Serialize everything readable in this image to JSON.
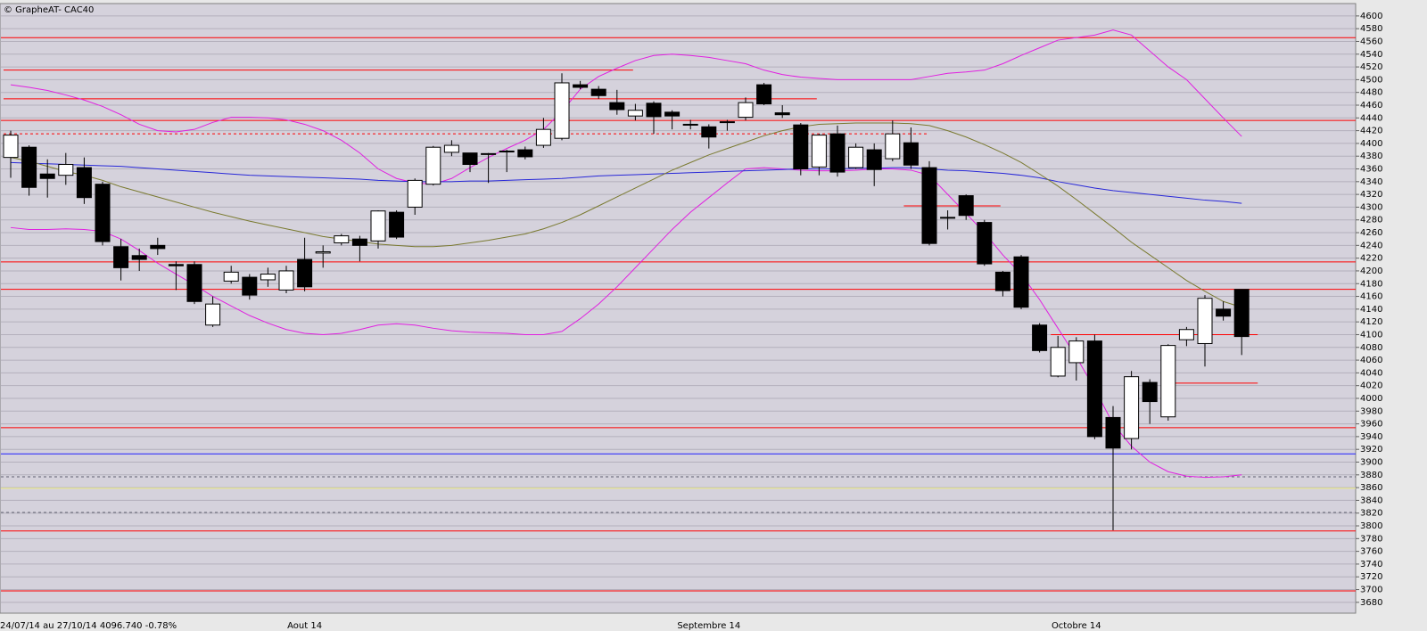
{
  "chart_data": {
    "type": "candlestick",
    "title": "© GrapheAT- CAC40",
    "footer": "24/07/14 au 27/10/14 4096.740 -0.78%",
    "categories": [
      null,
      null,
      null,
      null,
      null,
      null,
      null,
      null,
      null,
      null,
      null,
      null,
      null,
      null,
      null,
      null,
      "Aout 14",
      null,
      null,
      null,
      null,
      null,
      null,
      null,
      null,
      null,
      null,
      null,
      null,
      null,
      null,
      null,
      null,
      null,
      null,
      null,
      null,
      null,
      "Septembre 14",
      null,
      null,
      null,
      null,
      null,
      null,
      null,
      null,
      null,
      null,
      null,
      null,
      null,
      null,
      null,
      null,
      null,
      null,
      null,
      "Octobre 14",
      null,
      null,
      null,
      null,
      null,
      null,
      null,
      null,
      null
    ],
    "open": [
      4378,
      4394,
      4352,
      4350,
      4362,
      4336,
      4238,
      4224,
      4240,
      4210,
      4210,
      4115,
      4184,
      4190,
      4186,
      4170,
      4218,
      4228,
      4244,
      4250,
      4247,
      4292,
      4300,
      4336,
      4386,
      4385,
      4383,
      4387,
      4390,
      4397,
      4408,
      4492,
      4485,
      4464,
      4443,
      4463,
      4449,
      4430,
      4426,
      4433,
      4441,
      4492,
      4448,
      4429,
      4363,
      4415,
      4362,
      4390,
      4376,
      4401,
      4362,
      4284,
      4318,
      4276,
      4198,
      4222,
      4115,
      4035,
      4056,
      4090,
      3970,
      3937,
      4025,
      3971,
      4092,
      4086,
      4140,
      4171
    ],
    "high": [
      4420,
      4397,
      4375,
      4385,
      4378,
      4340,
      4250,
      4235,
      4252,
      4215,
      4215,
      4160,
      4208,
      4195,
      4205,
      4208,
      4252,
      4240,
      4258,
      4255,
      4295,
      4295,
      4345,
      4396,
      4405,
      4385,
      4385,
      4390,
      4395,
      4440,
      4510,
      4498,
      4490,
      4484,
      4462,
      4466,
      4452,
      4437,
      4430,
      4437,
      4472,
      4495,
      4460,
      4432,
      4415,
      4428,
      4400,
      4400,
      4436,
      4425,
      4372,
      4295,
      4320,
      4280,
      4200,
      4225,
      4118,
      4098,
      4096,
      4100,
      3988,
      4043,
      4030,
      4085,
      4112,
      4162,
      4152,
      4171
    ],
    "low": [
      4346,
      4318,
      4315,
      4335,
      4305,
      4240,
      4185,
      4200,
      4225,
      4170,
      4148,
      4112,
      4180,
      4155,
      4175,
      4165,
      4168,
      4205,
      4240,
      4215,
      4235,
      4250,
      4288,
      4334,
      4380,
      4355,
      4338,
      4355,
      4375,
      4393,
      4405,
      4485,
      4470,
      4445,
      4436,
      4415,
      4422,
      4422,
      4392,
      4420,
      4436,
      4460,
      4440,
      4350,
      4350,
      4348,
      4360,
      4333,
      4372,
      4360,
      4240,
      4265,
      4280,
      4208,
      4160,
      4140,
      4072,
      4033,
      4028,
      3936,
      3793,
      3920,
      3960,
      3965,
      4082,
      4050,
      4122,
      4068
    ],
    "close": [
      4413,
      4331,
      4345,
      4367,
      4315,
      4246,
      4205,
      4218,
      4235,
      4208,
      4152,
      4148,
      4198,
      4162,
      4195,
      4200,
      4175,
      4230,
      4255,
      4240,
      4294,
      4253,
      4342,
      4394,
      4397,
      4367,
      4384,
      4388,
      4379,
      4422,
      4495,
      4488,
      4475,
      4453,
      4452,
      4442,
      4443,
      4429,
      4410,
      4434,
      4464,
      4462,
      4445,
      4360,
      4413,
      4355,
      4394,
      4359,
      4415,
      4366,
      4243,
      4284,
      4287,
      4211,
      4169,
      4143,
      4075,
      4080,
      4090,
      3940,
      3922,
      4034,
      3995,
      4083,
      4108,
      4157,
      4129,
      4097
    ],
    "up_color": "#ffffff",
    "down_color": "#000000",
    "overlays": [
      {
        "color": "#e020e0",
        "values": [
          4492,
          4488,
          4483,
          4476,
          4468,
          4458,
          4445,
          4430,
          4420,
          4418,
          4422,
          4433,
          4441,
          4441,
          4440,
          4437,
          4430,
          4420,
          4405,
          4385,
          4360,
          4345,
          4338,
          4336,
          4345,
          4362,
          4378,
          4392,
          4405,
          4422,
          4450,
          4485,
          4505,
          4518,
          4530,
          4538,
          4540,
          4538,
          4535,
          4530,
          4525,
          4515,
          4508,
          4504,
          4502,
          4500,
          4500,
          4500,
          4500,
          4500,
          4505,
          4510,
          4512,
          4515,
          4525,
          4538,
          4550,
          4562,
          4566,
          4570,
          4578,
          4570,
          4545,
          4520,
          4500,
          4470,
          4440,
          4411
        ]
      },
      {
        "color": "#e020e0",
        "values": [
          4268,
          4265,
          4265,
          4266,
          4265,
          4262,
          4250,
          4232,
          4212,
          4195,
          4178,
          4160,
          4145,
          4130,
          4118,
          4108,
          4102,
          4100,
          4102,
          4108,
          4115,
          4117,
          4115,
          4110,
          4106,
          4104,
          4103,
          4102,
          4100,
          4100,
          4105,
          4125,
          4148,
          4175,
          4205,
          4235,
          4265,
          4292,
          4315,
          4338,
          4360,
          4362,
          4360,
          4358,
          4357,
          4357,
          4358,
          4360,
          4360,
          4358,
          4350,
          4320,
          4290,
          4260,
          4225,
          4195,
          4155,
          4110,
          4065,
          4015,
          3960,
          3925,
          3900,
          3885,
          3878,
          3876,
          3877,
          3880
        ]
      },
      {
        "color": "#2828d8",
        "values": [
          4370,
          4369,
          4368,
          4367,
          4366,
          4365,
          4364,
          4362,
          4360,
          4358,
          4356,
          4354,
          4352,
          4350,
          4349,
          4348,
          4347,
          4346,
          4345,
          4344,
          4342,
          4341,
          4340,
          4340,
          4340,
          4341,
          4341,
          4342,
          4343,
          4344,
          4345,
          4347,
          4349,
          4350,
          4351,
          4352,
          4353,
          4354,
          4355,
          4356,
          4357,
          4358,
          4359,
          4360,
          4360,
          4360,
          4361,
          4361,
          4362,
          4362,
          4360,
          4358,
          4357,
          4355,
          4353,
          4350,
          4346,
          4340,
          4335,
          4330,
          4326,
          4323,
          4320,
          4317,
          4314,
          4311,
          4309,
          4306
        ]
      },
      {
        "color": "#7a7a30",
        "values": [
          4378,
          4372,
          4364,
          4356,
          4350,
          4342,
          4332,
          4324,
          4316,
          4308,
          4300,
          4292,
          4285,
          4278,
          4272,
          4266,
          4260,
          4254,
          4250,
          4246,
          4242,
          4240,
          4238,
          4238,
          4240,
          4244,
          4248,
          4253,
          4258,
          4266,
          4276,
          4288,
          4302,
          4316,
          4330,
          4344,
          4358,
          4370,
          4382,
          4392,
          4402,
          4412,
          4420,
          4426,
          4430,
          4431,
          4432,
          4432,
          4432,
          4431,
          4428,
          4420,
          4410,
          4398,
          4385,
          4370,
          4352,
          4333,
          4312,
          4290,
          4268,
          4245,
          4225,
          4205,
          4185,
          4168,
          4152,
          4143
        ]
      }
    ],
    "hlines": [
      {
        "value": 4566,
        "color": "#ff0000"
      },
      {
        "value": 4515,
        "color": "#ff0000",
        "span": [
          0,
          33
        ]
      },
      {
        "value": 4470,
        "color": "#ff0000",
        "span": [
          0,
          43
        ]
      },
      {
        "value": 4436,
        "color": "#ff0000"
      },
      {
        "value": 4415,
        "color": "#ff0000",
        "span": [
          0,
          49
        ],
        "dashed": true
      },
      {
        "value": 4302,
        "color": "#ff0000",
        "span": [
          49,
          53
        ]
      },
      {
        "value": 4214,
        "color": "#ff0000"
      },
      {
        "value": 4171,
        "color": "#ff0000"
      },
      {
        "value": 4100,
        "color": "#ff0000",
        "span": [
          57,
          67
        ]
      },
      {
        "value": 4024,
        "color": "#ff0000",
        "span": [
          63,
          67
        ]
      },
      {
        "value": 3954,
        "color": "#ff0000"
      },
      {
        "value": 3913,
        "color": "#2020ff"
      },
      {
        "value": 3877,
        "color": "#606070",
        "dashed": true
      },
      {
        "value": 3859,
        "color": "#f0f080"
      },
      {
        "value": 3821,
        "color": "#606070",
        "dashed": true
      },
      {
        "value": 3792,
        "color": "#ff0000"
      },
      {
        "value": 3698,
        "color": "#ff0000"
      }
    ],
    "ylim": [
      3663,
      4618
    ],
    "yticks": [
      3680,
      3700,
      3720,
      3740,
      3760,
      3780,
      3800,
      3820,
      3840,
      3860,
      3880,
      3900,
      3920,
      3940,
      3960,
      3980,
      4000,
      4020,
      4040,
      4060,
      4080,
      4100,
      4120,
      4140,
      4160,
      4180,
      4200,
      4220,
      4240,
      4260,
      4280,
      4300,
      4320,
      4340,
      4360,
      4380,
      4400,
      4420,
      4440,
      4460,
      4480,
      4500,
      4520,
      4540,
      4560,
      4580,
      4600
    ],
    "grid": true
  }
}
